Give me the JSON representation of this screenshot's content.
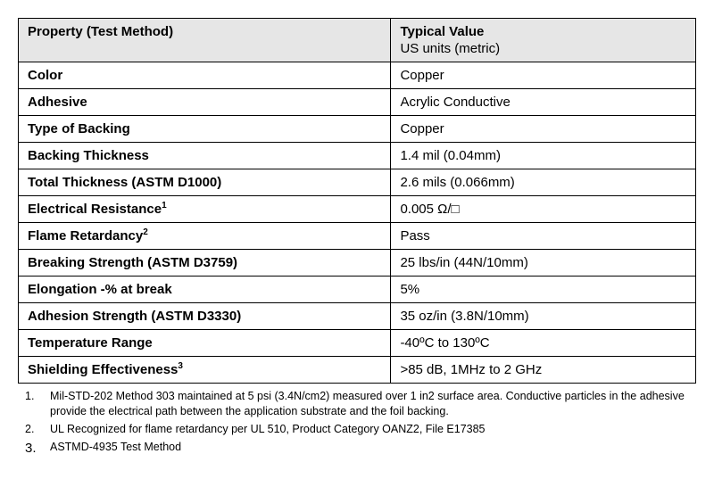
{
  "table": {
    "header": {
      "property": "Property (Test Method)",
      "value_main": "Typical Value",
      "value_sub": "US units (metric)"
    },
    "rows": [
      {
        "prop": "Color",
        "sup": "",
        "val": "Copper"
      },
      {
        "prop": "Adhesive",
        "sup": "",
        "val": "Acrylic Conductive"
      },
      {
        "prop": "Type of Backing",
        "sup": "",
        "val": "Copper"
      },
      {
        "prop": "Backing Thickness",
        "sup": "",
        "val": "1.4 mil (0.04mm)"
      },
      {
        "prop": "Total Thickness (ASTM D1000)",
        "sup": "",
        "val": "2.6  mils (0.066mm)"
      },
      {
        "prop": "Electrical Resistance",
        "sup": "1",
        "val": "0.005 Ω/□"
      },
      {
        "prop": "Flame Retardancy",
        "sup": "2",
        "val": "Pass"
      },
      {
        "prop": "Breaking Strength (ASTM D3759)",
        "sup": "",
        "val": "25 lbs/in (44N/10mm)"
      },
      {
        "prop": "Elongation -% at break",
        "sup": "",
        "val": "5%"
      },
      {
        "prop": "Adhesion Strength (ASTM D3330)",
        "sup": "",
        "val": "35 oz/in (3.8N/10mm)"
      },
      {
        "prop": "Temperature Range",
        "sup": "",
        "val": "-40ºC to 130ºC"
      },
      {
        "prop": "Shielding Effectiveness",
        "sup": "3",
        "val": ">85 dB, 1MHz to 2 GHz"
      }
    ]
  },
  "footnotes": [
    {
      "num": "1.",
      "text": "Mil-STD-202 Method 303 maintained at 5 psi (3.4N/cm2) measured over 1 in2 surface area. Conductive particles in the adhesive provide the electrical path between the application substrate and the foil backing."
    },
    {
      "num": "2.",
      "text": "UL Recognized for flame retardancy per UL 510, Product Category OANZ2, File E17385"
    },
    {
      "num": "3.",
      "text": "ASTMD-4935 Test Method"
    }
  ],
  "style": {
    "header_bg": "#e6e6e6",
    "border_color": "#000000",
    "body_fontsize": 15,
    "footnote_fontsize": 12.5,
    "col_prop_width_pct": 55,
    "col_val_width_pct": 45
  }
}
